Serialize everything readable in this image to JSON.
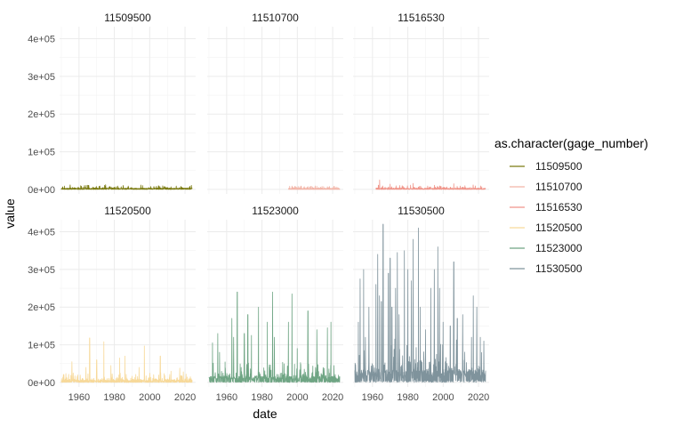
{
  "chart_data": {
    "type": "line",
    "title": "",
    "xlabel": "date",
    "ylabel": "value",
    "xlim": [
      1949,
      2026
    ],
    "ylim": [
      -12000,
      432000
    ],
    "x_ticks": [
      1960,
      1980,
      2000,
      2020
    ],
    "y_ticks": [
      0,
      100000,
      200000,
      300000,
      400000
    ],
    "y_tick_labels": [
      "0e+00",
      "1e+05",
      "2e+05",
      "3e+05",
      "4e+05"
    ],
    "grid": true,
    "facet_layout": "2x3",
    "legend": {
      "title": "as.character(gage_number)",
      "placement": "right"
    },
    "series": [
      {
        "name": "11509500",
        "color": "#7a7a10",
        "start": 1950,
        "end": 2024,
        "base": 3000,
        "spread": 4000,
        "spikes": [
          [
            1955,
            12000
          ],
          [
            1965,
            11000
          ],
          [
            1975,
            12500
          ],
          [
            1985,
            10500
          ],
          [
            1995,
            11500
          ],
          [
            2005,
            9500
          ],
          [
            2015,
            9000
          ]
        ]
      },
      {
        "name": "11510700",
        "color": "#f2b5a8",
        "start": 1995,
        "end": 2024,
        "base": 2000,
        "spread": 3500,
        "spikes": [
          [
            1997,
            9000
          ],
          [
            2006,
            7500
          ],
          [
            2011,
            8500
          ],
          [
            2017,
            7000
          ],
          [
            2022,
            6500
          ]
        ]
      },
      {
        "name": "11516530",
        "color": "#f0958a",
        "start": 1962,
        "end": 2024,
        "base": 2500,
        "spread": 4500,
        "spikes": [
          [
            1964,
            25000
          ],
          [
            1970,
            14000
          ],
          [
            1983,
            16000
          ],
          [
            1995,
            11000
          ],
          [
            2006,
            15000
          ],
          [
            2017,
            12000
          ]
        ]
      },
      {
        "name": "11520500",
        "color": "#f7d99a",
        "start": 1950,
        "end": 2024,
        "base": 6000,
        "spread": 11000,
        "spikes": [
          [
            1956,
            55000
          ],
          [
            1964,
            40000
          ],
          [
            1966,
            118000
          ],
          [
            1970,
            60000
          ],
          [
            1974,
            108000
          ],
          [
            1978,
            45000
          ],
          [
            1983,
            65000
          ],
          [
            1986,
            70000
          ],
          [
            1994,
            40000
          ],
          [
            1997,
            97000
          ],
          [
            2006,
            70000
          ],
          [
            2012,
            30000
          ],
          [
            2017,
            38000
          ],
          [
            2019,
            28000
          ]
        ]
      },
      {
        "name": "11523000",
        "color": "#6fa584",
        "start": 1950,
        "end": 2024,
        "base": 14000,
        "spread": 22000,
        "spikes": [
          [
            1952,
            105000
          ],
          [
            1955,
            130000
          ],
          [
            1956,
            80000
          ],
          [
            1963,
            170000
          ],
          [
            1964,
            120000
          ],
          [
            1966,
            240000
          ],
          [
            1970,
            130000
          ],
          [
            1972,
            180000
          ],
          [
            1974,
            125000
          ],
          [
            1978,
            200000
          ],
          [
            1983,
            160000
          ],
          [
            1986,
            240000
          ],
          [
            1987,
            120000
          ],
          [
            1995,
            160000
          ],
          [
            1997,
            235000
          ],
          [
            2000,
            90000
          ],
          [
            2006,
            190000
          ],
          [
            2011,
            140000
          ],
          [
            2017,
            145000
          ],
          [
            2019,
            160000
          ]
        ]
      },
      {
        "name": "11530500",
        "color": "#7f939c",
        "start": 1950,
        "end": 2024,
        "base": 30000,
        "spread": 45000,
        "spikes": [
          [
            1952,
            160000
          ],
          [
            1953,
            275000
          ],
          [
            1955,
            300000
          ],
          [
            1956,
            120000
          ],
          [
            1958,
            200000
          ],
          [
            1962,
            260000
          ],
          [
            1963,
            340000
          ],
          [
            1964,
            230000
          ],
          [
            1965,
            215000
          ],
          [
            1966,
            420000
          ],
          [
            1969,
            290000
          ],
          [
            1970,
            330000
          ],
          [
            1971,
            200000
          ],
          [
            1973,
            250000
          ],
          [
            1974,
            345000
          ],
          [
            1975,
            180000
          ],
          [
            1978,
            350000
          ],
          [
            1980,
            300000
          ],
          [
            1982,
            270000
          ],
          [
            1983,
            380000
          ],
          [
            1986,
            410000
          ],
          [
            1987,
            200000
          ],
          [
            1990,
            140000
          ],
          [
            1993,
            250000
          ],
          [
            1995,
            300000
          ],
          [
            1997,
            360000
          ],
          [
            1998,
            250000
          ],
          [
            2000,
            160000
          ],
          [
            2004,
            150000
          ],
          [
            2006,
            320000
          ],
          [
            2008,
            170000
          ],
          [
            2011,
            180000
          ],
          [
            2016,
            120000
          ],
          [
            2017,
            230000
          ],
          [
            2019,
            200000
          ],
          [
            2021,
            120000
          ],
          [
            2023,
            110000
          ]
        ]
      }
    ],
    "panels": [
      {
        "label": "11509500",
        "series_index": 0,
        "row": 0,
        "col": 0
      },
      {
        "label": "11510700",
        "series_index": 1,
        "row": 0,
        "col": 1
      },
      {
        "label": "11516530",
        "series_index": 2,
        "row": 0,
        "col": 2
      },
      {
        "label": "11520500",
        "series_index": 3,
        "row": 1,
        "col": 0
      },
      {
        "label": "11523000",
        "series_index": 4,
        "row": 1,
        "col": 1
      },
      {
        "label": "11530500",
        "series_index": 5,
        "row": 1,
        "col": 2
      }
    ]
  }
}
